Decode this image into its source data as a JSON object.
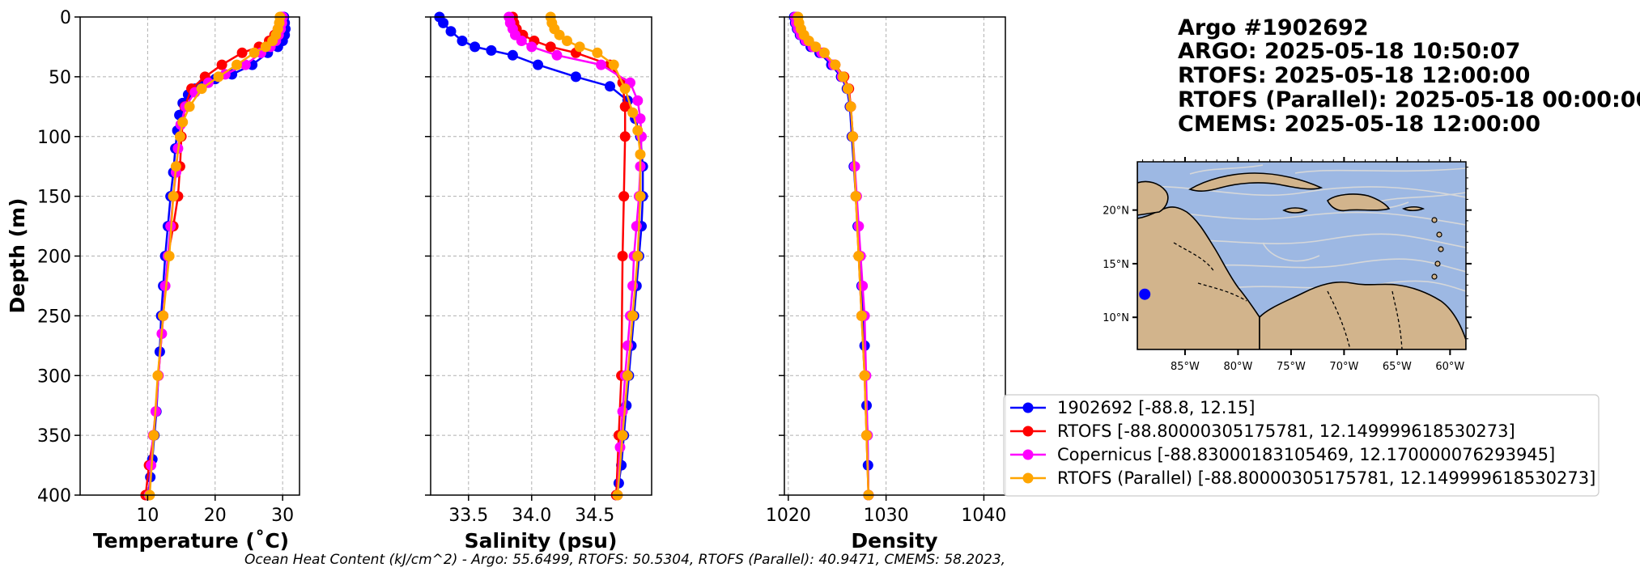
{
  "chart_data": [
    {
      "type": "line",
      "xlabel": "Temperature (˚C)",
      "ylabel": "Depth (m)",
      "xlim": [
        0,
        32.5
      ],
      "ylim": [
        400,
        0
      ],
      "xticks": [
        10,
        20,
        30
      ],
      "yticks": [
        0,
        50,
        100,
        150,
        200,
        250,
        300,
        350,
        400
      ],
      "grid": true,
      "series": [
        {
          "name": "1902692 [-88.8, 12.15]",
          "color": "#0000ff",
          "x": [
            30.2,
            30.3,
            30.4,
            30.3,
            30.0,
            29.3,
            27.8,
            25.5,
            22.5,
            20.0,
            18.2,
            17.0,
            16.0,
            15.2,
            14.7,
            14.4,
            14.1,
            13.8,
            13.4,
            13.0,
            12.6,
            12.3,
            12.0,
            11.8,
            11.6,
            11.3,
            11.0,
            10.7,
            10.4,
            10.1
          ],
          "y": [
            0,
            5,
            10,
            15,
            20,
            25,
            30,
            40,
            48,
            52,
            56,
            60,
            65,
            72,
            82,
            95,
            110,
            130,
            150,
            175,
            200,
            225,
            250,
            280,
            300,
            330,
            350,
            370,
            385,
            400
          ]
        },
        {
          "name": "RTOFS [-88.80000305175781, 12.149999618530273]",
          "color": "#ff0000",
          "x": [
            29.8,
            29.6,
            29.3,
            28.8,
            28.0,
            26.5,
            24.0,
            21.0,
            18.5,
            16.5,
            15.5,
            15.0,
            14.8,
            14.5,
            13.8,
            13.0,
            12.3,
            11.6,
            10.9,
            10.2,
            9.7
          ],
          "y": [
            0,
            5,
            10,
            15,
            20,
            25,
            30,
            40,
            50,
            60,
            75,
            100,
            125,
            150,
            175,
            200,
            250,
            300,
            350,
            375,
            400
          ]
        },
        {
          "name": "Copernicus [-88.83000183105469, 12.170000076293945]",
          "color": "#ff00ff",
          "x": [
            30.0,
            29.9,
            29.7,
            29.4,
            29.0,
            28.2,
            26.8,
            24.5,
            21.5,
            19.0,
            17.0,
            15.6,
            14.9,
            14.5,
            14.2,
            13.8,
            13.4,
            13.0,
            12.6,
            12.3,
            12.1,
            11.6,
            11.2,
            10.8,
            10.5,
            10.2
          ],
          "y": [
            0,
            5,
            10,
            15,
            20,
            25,
            30,
            40,
            48,
            55,
            63,
            75,
            90,
            110,
            130,
            150,
            175,
            200,
            225,
            250,
            265,
            300,
            330,
            350,
            375,
            400
          ]
        },
        {
          "name": "RTOFS (Parallel) [-88.80000305175781, 12.149999618530273]",
          "color": "#ffa500",
          "x": [
            29.6,
            29.5,
            29.3,
            29.0,
            28.5,
            27.5,
            25.8,
            23.2,
            20.5,
            18.0,
            16.2,
            15.2,
            14.8,
            14.2,
            13.8,
            13.2,
            12.3,
            11.5,
            10.9,
            10.3
          ],
          "y": [
            0,
            5,
            10,
            15,
            20,
            25,
            30,
            40,
            50,
            60,
            75,
            88,
            100,
            125,
            150,
            200,
            250,
            300,
            350,
            400
          ]
        }
      ]
    },
    {
      "type": "line",
      "xlabel": "Salinity (psu)",
      "ylabel": "",
      "xlim": [
        33.2,
        34.95
      ],
      "ylim": [
        400,
        0
      ],
      "xticks": [
        33.5,
        34.0,
        34.5
      ],
      "yticks": [
        0,
        50,
        100,
        150,
        200,
        250,
        300,
        350,
        400
      ],
      "grid": true,
      "series": [
        {
          "name": "1902692 [-88.8, 12.15]",
          "color": "#0000ff",
          "x": [
            33.27,
            33.3,
            33.36,
            33.45,
            33.55,
            33.68,
            33.85,
            34.05,
            34.35,
            34.62,
            34.76,
            34.82,
            34.86,
            34.88,
            34.88,
            34.87,
            34.85,
            34.83,
            34.81,
            34.79,
            34.77,
            34.75,
            34.73,
            34.71,
            34.69,
            34.67
          ],
          "y": [
            0,
            5,
            12,
            20,
            25,
            28,
            32,
            40,
            50,
            58,
            70,
            85,
            100,
            125,
            150,
            175,
            200,
            225,
            250,
            275,
            300,
            325,
            350,
            375,
            390,
            400
          ]
        },
        {
          "name": "RTOFS [-88.80000305175781, 12.149999618530273]",
          "color": "#ff0000",
          "x": [
            33.85,
            33.86,
            33.88,
            33.93,
            34.02,
            34.15,
            34.35,
            34.62,
            34.72,
            34.74,
            34.74,
            34.73,
            34.72,
            34.71,
            34.69,
            34.67
          ],
          "y": [
            0,
            5,
            10,
            15,
            20,
            25,
            30,
            40,
            55,
            75,
            100,
            150,
            200,
            300,
            350,
            400
          ]
        },
        {
          "name": "Copernicus [-88.83000183105469, 12.170000076293945]",
          "color": "#ff00ff",
          "x": [
            33.82,
            33.83,
            33.85,
            33.87,
            33.92,
            34.0,
            34.2,
            34.55,
            34.78,
            34.84,
            34.86,
            34.87,
            34.86,
            34.85,
            34.83,
            34.81,
            34.8,
            34.78,
            34.76,
            34.74,
            34.72,
            34.7,
            34.68
          ],
          "y": [
            0,
            5,
            10,
            15,
            20,
            25,
            32,
            40,
            55,
            70,
            85,
            100,
            125,
            150,
            175,
            200,
            225,
            250,
            275,
            300,
            330,
            360,
            400
          ]
        },
        {
          "name": "RTOFS (Parallel) [-88.80000305175781, 12.149999618530273]",
          "color": "#ffa500",
          "x": [
            34.15,
            34.16,
            34.18,
            34.22,
            34.28,
            34.38,
            34.52,
            34.65,
            34.74,
            34.8,
            34.84,
            34.86,
            34.86,
            34.84,
            34.8,
            34.76,
            34.72,
            34.68
          ],
          "y": [
            0,
            5,
            10,
            15,
            20,
            25,
            30,
            40,
            60,
            80,
            95,
            115,
            150,
            200,
            250,
            300,
            350,
            400
          ]
        }
      ]
    },
    {
      "type": "line",
      "xlabel": "Density",
      "ylabel": "",
      "xlim": [
        1019.6,
        1042.2
      ],
      "ylim": [
        400,
        0
      ],
      "xticks": [
        1020,
        1030,
        1040
      ],
      "yticks": [
        0,
        50,
        100,
        150,
        200,
        250,
        300,
        350,
        400
      ],
      "grid": true,
      "series": [
        {
          "name": "1902692 [-88.8, 12.15]",
          "color": "#0000ff",
          "x": [
            1020.6,
            1020.7,
            1020.9,
            1021.2,
            1021.7,
            1022.3,
            1023.2,
            1024.4,
            1025.4,
            1026.0,
            1026.3,
            1026.5,
            1026.7,
            1026.9,
            1027.1,
            1027.3,
            1027.5,
            1027.7,
            1027.8,
            1027.9,
            1028.0,
            1028.1,
            1028.15,
            1028.2
          ],
          "y": [
            0,
            5,
            10,
            15,
            20,
            25,
            30,
            40,
            50,
            60,
            75,
            100,
            125,
            150,
            175,
            200,
            225,
            250,
            275,
            300,
            325,
            350,
            375,
            400
          ]
        },
        {
          "name": "RTOFS [-88.80000305175781, 12.149999618530273]",
          "color": "#ff0000",
          "x": [
            1020.9,
            1021.0,
            1021.2,
            1021.5,
            1022.0,
            1022.7,
            1023.6,
            1024.8,
            1025.7,
            1026.2,
            1026.4,
            1026.6,
            1026.9,
            1027.2,
            1027.5,
            1027.8,
            1028.0,
            1028.2
          ],
          "y": [
            0,
            5,
            10,
            15,
            20,
            25,
            30,
            40,
            50,
            60,
            75,
            100,
            150,
            200,
            250,
            300,
            350,
            400
          ]
        },
        {
          "name": "Copernicus [-88.83000183105469, 12.170000076293945]",
          "color": "#ff00ff",
          "x": [
            1020.7,
            1020.8,
            1021.0,
            1021.3,
            1021.8,
            1022.5,
            1023.4,
            1024.6,
            1025.5,
            1026.1,
            1026.4,
            1026.6,
            1026.8,
            1027.0,
            1027.2,
            1027.4,
            1027.6,
            1027.8,
            1027.95,
            1028.1,
            1028.2
          ],
          "y": [
            0,
            5,
            10,
            15,
            20,
            25,
            30,
            40,
            50,
            60,
            75,
            100,
            125,
            150,
            175,
            200,
            225,
            250,
            300,
            350,
            400
          ]
        },
        {
          "name": "RTOFS (Parallel) [-88.80000305175781, 12.149999618530273]",
          "color": "#ffa500",
          "x": [
            1021.0,
            1021.1,
            1021.3,
            1021.6,
            1022.1,
            1022.8,
            1023.7,
            1024.8,
            1025.6,
            1026.1,
            1026.4,
            1026.6,
            1026.9,
            1027.2,
            1027.5,
            1027.8,
            1028.0,
            1028.2
          ],
          "y": [
            0,
            5,
            10,
            15,
            20,
            25,
            30,
            40,
            50,
            60,
            75,
            100,
            150,
            200,
            250,
            300,
            350,
            400
          ]
        }
      ]
    }
  ],
  "title_lines": [
    "Argo #1902692",
    "ARGO:  2025-05-18 10:50:07",
    "RTOFS: 2025-05-18 12:00:00",
    "RTOFS (Parallel): 2025-05-18 00:00:00",
    "CMEMS: 2025-05-18 12:00:00"
  ],
  "map": {
    "lon_range": [
      -89.5,
      -58.5
    ],
    "lat_range": [
      7,
      24.5
    ],
    "lon_ticks": [
      {
        "v": -85,
        "label": "85°W"
      },
      {
        "v": -80,
        "label": "80°W"
      },
      {
        "v": -75,
        "label": "75°W"
      },
      {
        "v": -70,
        "label": "70°W"
      },
      {
        "v": -65,
        "label": "65°W"
      },
      {
        "v": -60,
        "label": "60°W"
      }
    ],
    "lat_ticks": [
      {
        "v": 20,
        "label": "20°N"
      },
      {
        "v": 15,
        "label": "15°N"
      },
      {
        "v": 10,
        "label": "10°N"
      }
    ],
    "float_position": {
      "lon": -88.8,
      "lat": 12.15
    },
    "ocean_color": "#9db8e3",
    "land_color": "#d2b48c",
    "streamline_color": "#d9d9d9",
    "float_color": "#0000ff"
  },
  "footer": "Ocean Heat Content (kJ/cm^2) - Argo: 55.6499,  RTOFS: 50.5304,  RTOFS (Parallel): 40.9471,  CMEMS: 58.2023,"
}
